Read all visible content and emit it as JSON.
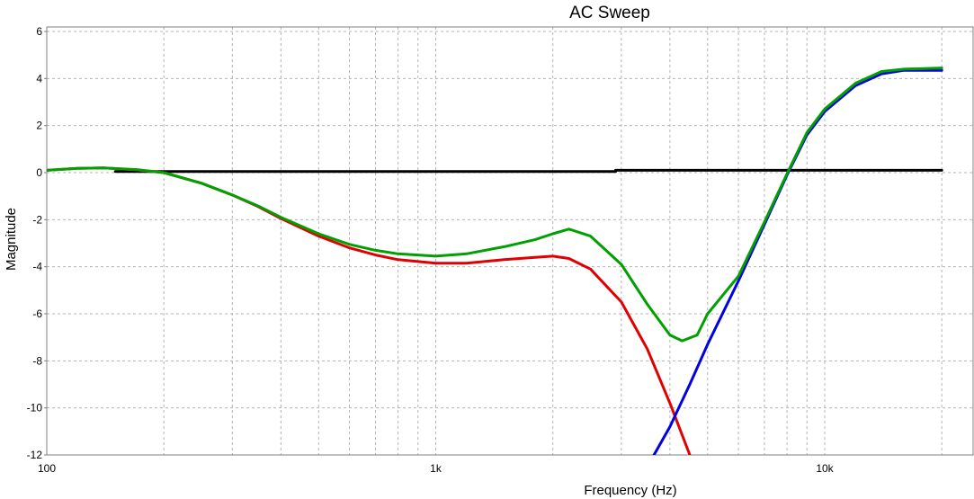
{
  "chart_data": {
    "type": "line",
    "title": "AC Sweep",
    "xlabel": "Frequency (Hz)",
    "ylabel": "Magnitude",
    "x_scale": "log",
    "xlim": [
      100,
      20000
    ],
    "ylim": [
      -12,
      6
    ],
    "x_ticks": [
      {
        "value": 100,
        "label": "100"
      },
      {
        "value": 1000,
        "label": "1k"
      },
      {
        "value": 10000,
        "label": "10k"
      }
    ],
    "y_ticks": [
      {
        "value": 6,
        "label": "6"
      },
      {
        "value": 4,
        "label": "4"
      },
      {
        "value": 2,
        "label": "2"
      },
      {
        "value": 0,
        "label": "0"
      },
      {
        "value": -2,
        "label": "-2"
      },
      {
        "value": -4,
        "label": "-4"
      },
      {
        "value": -6,
        "label": "-6"
      },
      {
        "value": -8,
        "label": "-8"
      },
      {
        "value": -10,
        "label": "-10"
      },
      {
        "value": -12,
        "label": "-12"
      }
    ],
    "grid": true,
    "legend": "none",
    "series": [
      {
        "color": "#000000",
        "points": [
          [
            150,
            0.05
          ],
          [
            2900,
            0.05
          ],
          [
            2900,
            0.1
          ],
          [
            20000,
            0.1
          ]
        ]
      },
      {
        "color": "#e00000",
        "points": [
          [
            100,
            0.1
          ],
          [
            120,
            0.18
          ],
          [
            140,
            0.2
          ],
          [
            170,
            0.12
          ],
          [
            200,
            0.0
          ],
          [
            250,
            -0.45
          ],
          [
            300,
            -0.95
          ],
          [
            350,
            -1.45
          ],
          [
            400,
            -1.95
          ],
          [
            500,
            -2.7
          ],
          [
            600,
            -3.2
          ],
          [
            700,
            -3.5
          ],
          [
            800,
            -3.7
          ],
          [
            1000,
            -3.85
          ],
          [
            1200,
            -3.85
          ],
          [
            1500,
            -3.7
          ],
          [
            1800,
            -3.6
          ],
          [
            2000,
            -3.55
          ],
          [
            2200,
            -3.65
          ],
          [
            2500,
            -4.1
          ],
          [
            3000,
            -5.5
          ],
          [
            3500,
            -7.5
          ],
          [
            4000,
            -9.8
          ],
          [
            4500,
            -12.0
          ],
          [
            4600,
            -12.5
          ]
        ]
      },
      {
        "color": "#0000e0",
        "points": [
          [
            3500,
            -12.5
          ],
          [
            4000,
            -10.8
          ],
          [
            4500,
            -9.0
          ],
          [
            5000,
            -7.3
          ],
          [
            6000,
            -4.6
          ],
          [
            7000,
            -2.2
          ],
          [
            8000,
            -0.1
          ],
          [
            9000,
            1.6
          ],
          [
            10000,
            2.6
          ],
          [
            12000,
            3.7
          ],
          [
            14000,
            4.2
          ],
          [
            16000,
            4.35
          ],
          [
            20000,
            4.35
          ]
        ]
      },
      {
        "color": "#00a000",
        "points": [
          [
            100,
            0.1
          ],
          [
            120,
            0.18
          ],
          [
            140,
            0.2
          ],
          [
            170,
            0.13
          ],
          [
            200,
            0.0
          ],
          [
            250,
            -0.45
          ],
          [
            300,
            -0.95
          ],
          [
            350,
            -1.42
          ],
          [
            400,
            -1.9
          ],
          [
            500,
            -2.6
          ],
          [
            600,
            -3.05
          ],
          [
            700,
            -3.3
          ],
          [
            800,
            -3.45
          ],
          [
            1000,
            -3.55
          ],
          [
            1200,
            -3.45
          ],
          [
            1500,
            -3.15
          ],
          [
            1800,
            -2.85
          ],
          [
            2000,
            -2.6
          ],
          [
            2200,
            -2.4
          ],
          [
            2500,
            -2.7
          ],
          [
            3000,
            -3.9
          ],
          [
            3500,
            -5.6
          ],
          [
            4000,
            -6.9
          ],
          [
            4300,
            -7.15
          ],
          [
            4700,
            -6.9
          ],
          [
            5000,
            -6.0
          ],
          [
            6000,
            -4.4
          ],
          [
            7000,
            -2.1
          ],
          [
            8000,
            -0.05
          ],
          [
            9000,
            1.7
          ],
          [
            10000,
            2.7
          ],
          [
            12000,
            3.8
          ],
          [
            14000,
            4.3
          ],
          [
            16000,
            4.4
          ],
          [
            20000,
            4.45
          ]
        ]
      }
    ]
  }
}
